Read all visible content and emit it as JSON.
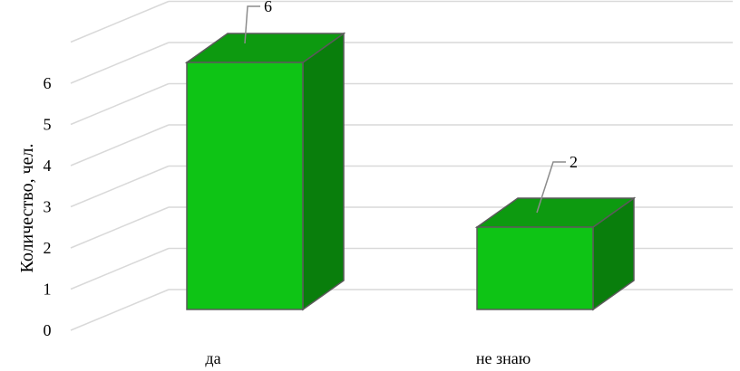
{
  "chart_data": {
    "type": "bar",
    "categories": [
      "да",
      "не знаю"
    ],
    "series": [
      {
        "values": [
          6,
          2
        ]
      }
    ],
    "xlabel": "",
    "ylabel": "Количество, чел.",
    "ylim": [
      0,
      7
    ],
    "yticks": [
      "0",
      "1",
      "2",
      "3",
      "4",
      "5",
      "6"
    ],
    "data_labels": [
      "6",
      "2"
    ],
    "grid": true,
    "style": "3d-column",
    "colors": {
      "front": "#0ec415",
      "top": "#0d9a10",
      "side": "#097e0c",
      "edge": "#5a5a5a",
      "grid": "#d9d9d9",
      "leader": "#8c8c8c"
    }
  }
}
